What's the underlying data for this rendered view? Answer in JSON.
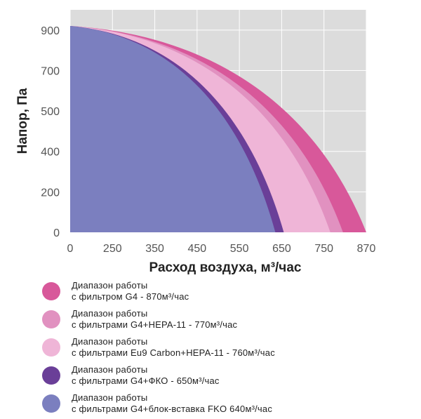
{
  "chart_data": {
    "type": "area",
    "xlabel": "Расход воздуха, м³/час",
    "ylabel": "Напор, Па",
    "x_ticks": [
      "0",
      "250",
      "350",
      "450",
      "550",
      "650",
      "750",
      "870"
    ],
    "y_ticks": [
      "0",
      "200",
      "400",
      "500",
      "700",
      "900"
    ],
    "grid": true,
    "legend_position": "bottom",
    "series": [
      {
        "name_line1": "Диапазон  работы",
        "name_line2": "с фильтром G4 - 870м³/час",
        "color": "#d8589a",
        "max_flow_tick_index": 7,
        "pressure_at_zero": 920
      },
      {
        "name_line1": "Диапазон  работы",
        "name_line2": "с фильтрами G4+HEPA-11 - 770м³/час",
        "color": "#e191c0",
        "max_flow_tick_index": 6.45,
        "pressure_at_zero": 920
      },
      {
        "name_line1": "Диапазон  работы",
        "name_line2": "с фильтрами Eu9 Carbon+HEPA-11 - 760м³/час",
        "color": "#efb5d7",
        "max_flow_tick_index": 6.15,
        "pressure_at_zero": 920
      },
      {
        "name_line1": "Диапазон  работы",
        "name_line2": "с фильтрами G4+ФКО - 650м³/час",
        "color": "#6a3f98",
        "max_flow_tick_index": 5.05,
        "pressure_at_zero": 920
      },
      {
        "name_line1": "Диапазон  работы",
        "name_line2": "с фильтрами G4+блок-вставка FKO 640м³/час",
        "color": "#7b7fbf",
        "max_flow_tick_index": 4.85,
        "pressure_at_zero": 920
      }
    ]
  },
  "colors": {
    "plot_background": "#dcdcdc",
    "grid": "#ffffff"
  }
}
